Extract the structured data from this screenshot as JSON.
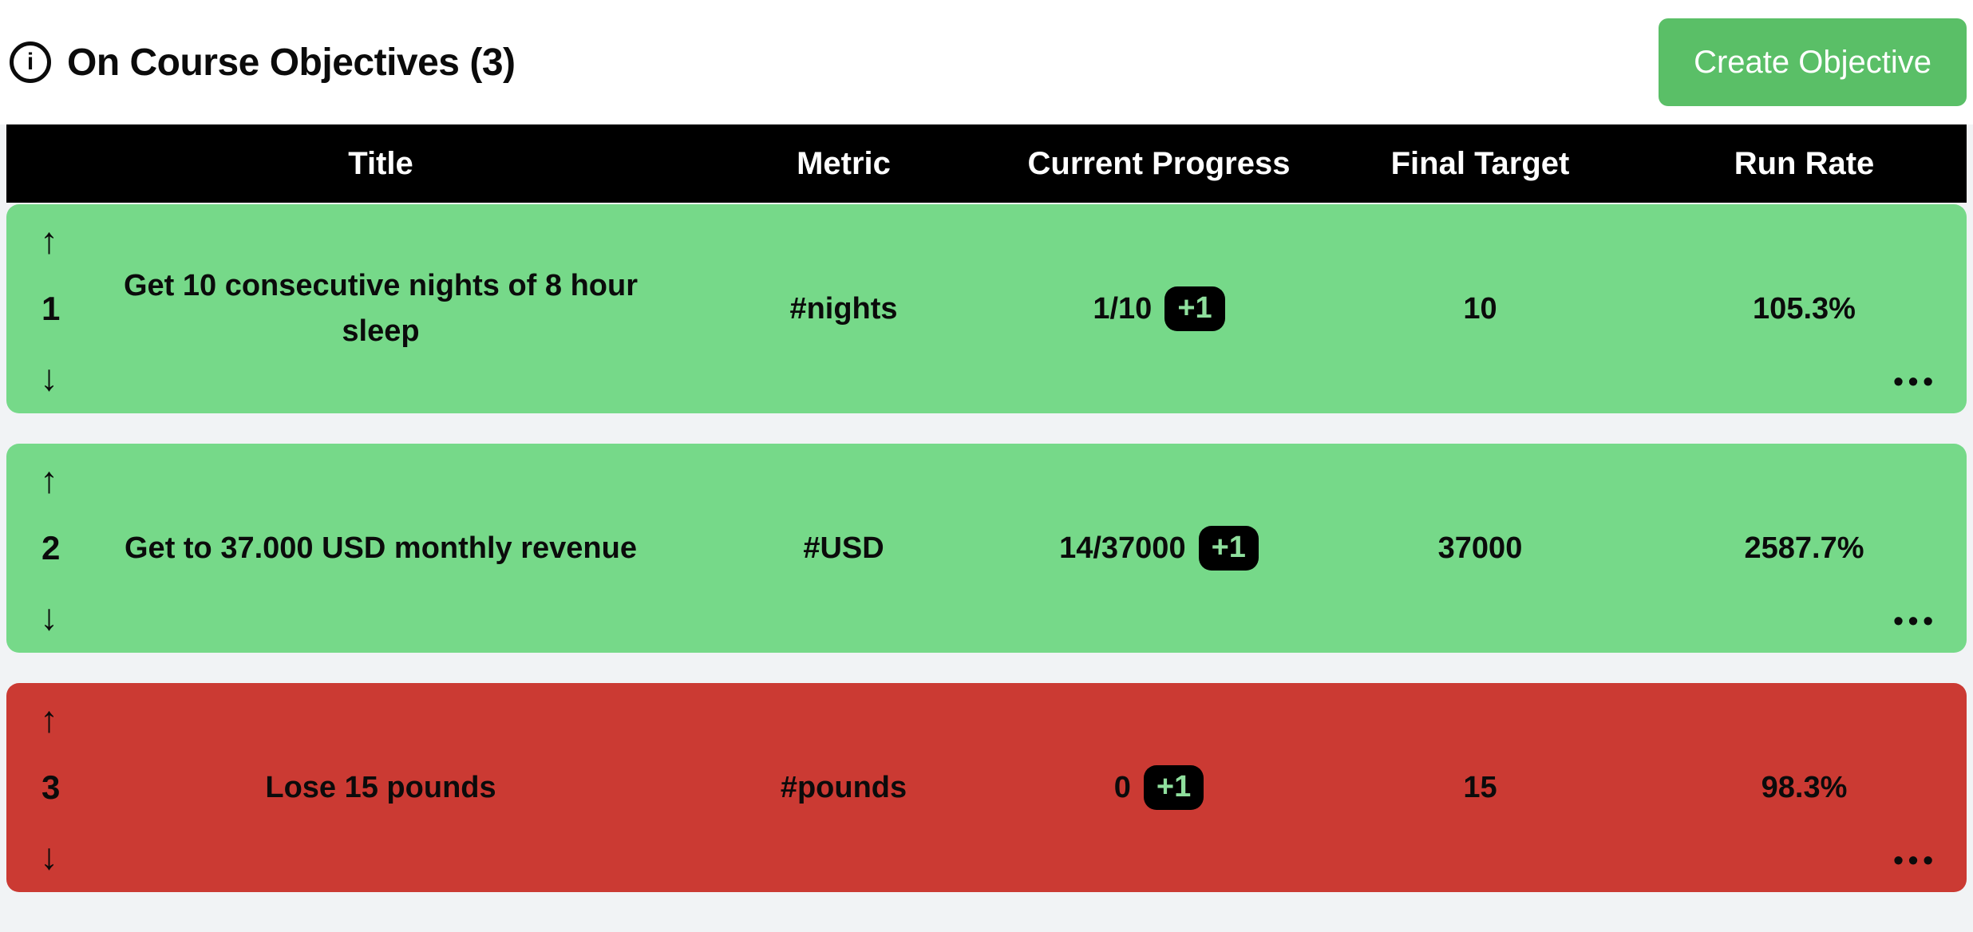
{
  "header": {
    "title": "On Course Objectives (3)",
    "info_icon": "i",
    "create_button_label": "Create Objective"
  },
  "icons": {
    "move_up": "↑",
    "move_down": "↓",
    "more_options": "•••"
  },
  "colors": {
    "on_course_green": "#76d989",
    "off_course_red": "#cb3a33",
    "button_green": "#5abf67",
    "header_bar_bg": "#000000",
    "badge_bg": "#000000",
    "badge_text": "#8fdf9d",
    "page_bg": "#f1f3f5"
  },
  "table": {
    "columns": [
      "Title",
      "Metric",
      "Current Progress",
      "Final Target",
      "Run Rate"
    ],
    "rows": [
      {
        "index": "1",
        "title": "Get 10 consecutive nights of 8 hour sleep",
        "metric": "#nights",
        "progress": "1/10",
        "increment_label": "+1",
        "final_target": "10",
        "run_rate": "105.3%",
        "status": "on-course"
      },
      {
        "index": "2",
        "title": "Get to 37.000 USD monthly revenue",
        "metric": "#USD",
        "progress": "14/37000",
        "increment_label": "+1",
        "final_target": "37000",
        "run_rate": "2587.7%",
        "status": "on-course"
      },
      {
        "index": "3",
        "title": "Lose 15 pounds",
        "metric": "#pounds",
        "progress": "0",
        "increment_label": "+1",
        "final_target": "15",
        "run_rate": "98.3%",
        "status": "off-course"
      }
    ]
  }
}
